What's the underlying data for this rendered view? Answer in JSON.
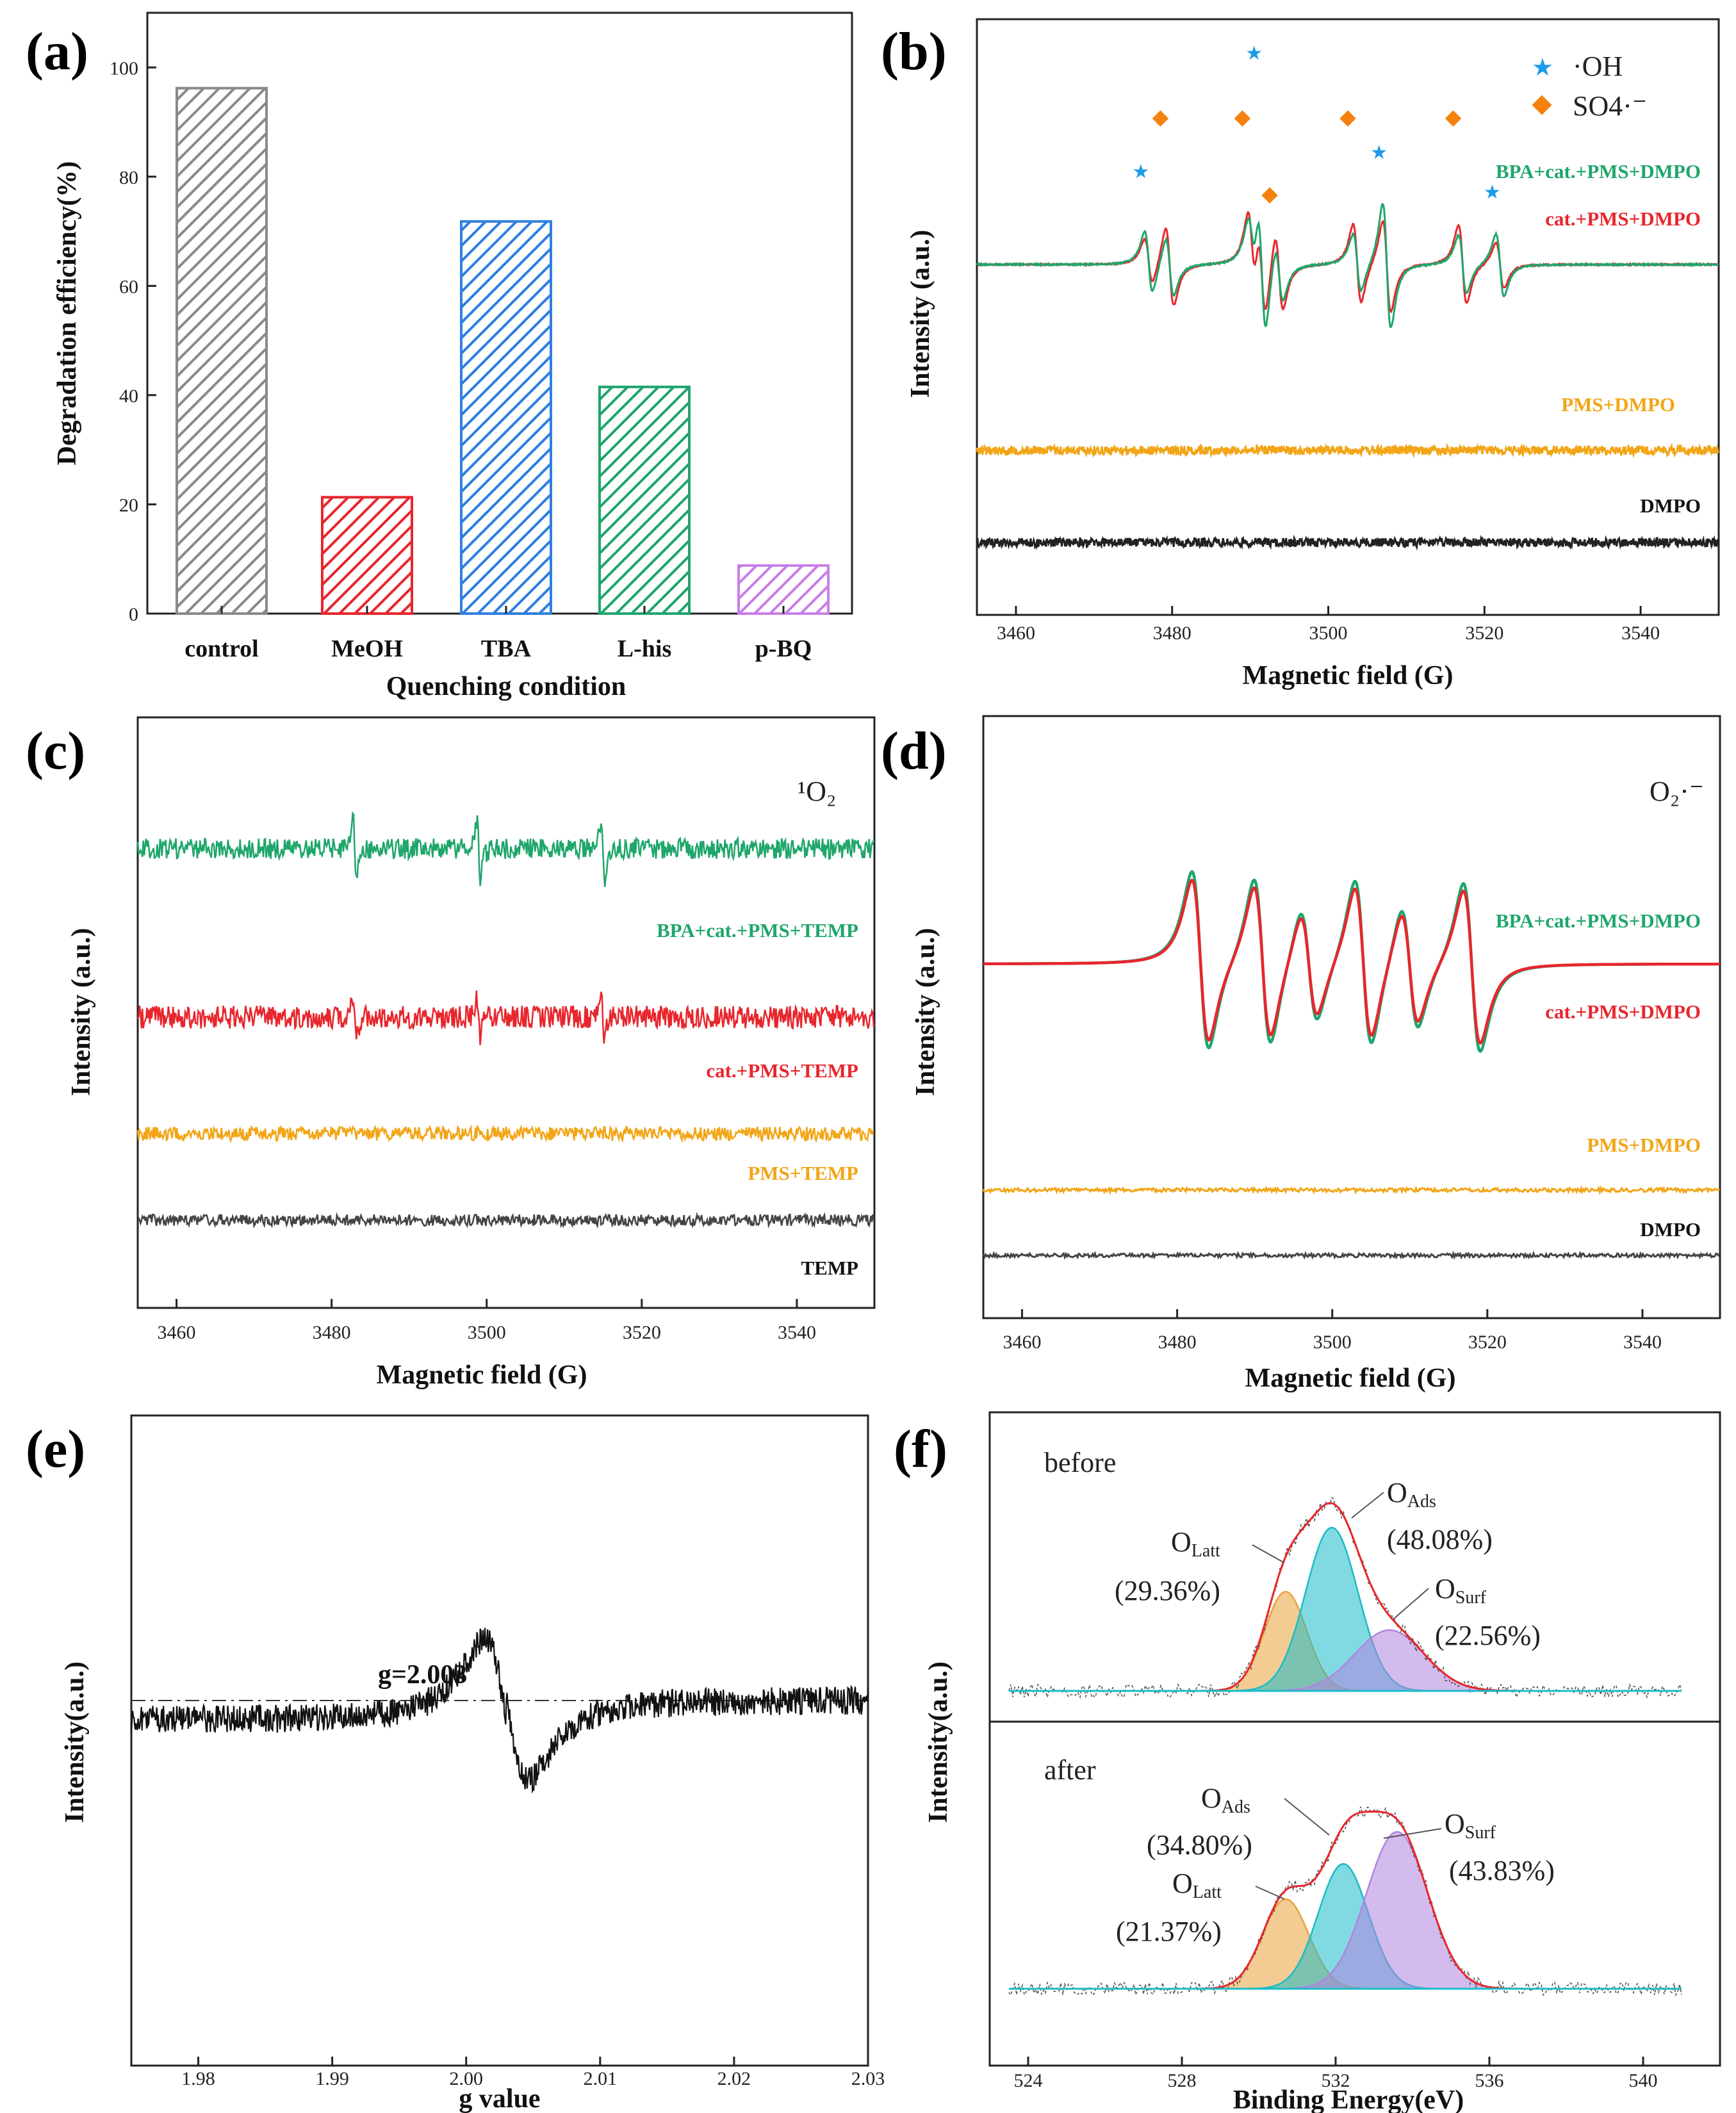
{
  "chart_data": [
    {
      "panel": "(a)",
      "type": "bar",
      "categories": [
        "control",
        "MeOH",
        "TBA",
        "L-his",
        "p-BQ"
      ],
      "values": [
        96.2,
        21.3,
        71.8,
        41.5,
        8.8
      ],
      "colors": [
        "#8a8a8a",
        "#e8262d",
        "#2f7fe0",
        "#1fa66b",
        "#c97ee8"
      ],
      "ylabel": "Degradation efficiency(%)",
      "xlabel": "Quenching condition",
      "ylim": [
        0,
        110
      ],
      "yticks": [
        0,
        20,
        40,
        60,
        80,
        100
      ]
    },
    {
      "panel": "(b)",
      "type": "line",
      "xlabel": "Magnetic field (G)",
      "ylabel": "Intensity (a.u.)",
      "xlim": [
        3455,
        3550
      ],
      "xticks": [
        3460,
        3480,
        3500,
        3520,
        3540
      ],
      "series": [
        {
          "name": "BPA+cat.+PMS+DMPO",
          "color": "#1fa66b"
        },
        {
          "name": "cat.+PMS+DMPO",
          "color": "#e8262d"
        },
        {
          "name": "PMS+DMPO",
          "color": "#f2a516"
        },
        {
          "name": "DMPO",
          "color": "#222222"
        }
      ],
      "oh_peaks_G": [
        3476,
        3490.5,
        3506.5,
        3521
      ],
      "so4_peaks_G": [
        3478.5,
        3489,
        3492.5,
        3502.5,
        3516
      ],
      "legend": [
        "·OH",
        "SO4·⁻"
      ]
    },
    {
      "panel": "(c)",
      "type": "line",
      "xlabel": "Magnetic field (G)",
      "ylabel": "Intensity (a.u.)",
      "xlim": [
        3455,
        3550
      ],
      "xticks": [
        3460,
        3480,
        3500,
        3520,
        3540
      ],
      "annotation": "¹O₂",
      "peaks_G": [
        3483,
        3499,
        3515
      ],
      "series": [
        {
          "name": "BPA+cat.+PMS+TEMP",
          "color": "#1fa66b"
        },
        {
          "name": "cat.+PMS+TEMP",
          "color": "#e8262d"
        },
        {
          "name": "PMS+TEMP",
          "color": "#f2a516"
        },
        {
          "name": "TEMP",
          "color": "#444444"
        }
      ]
    },
    {
      "panel": "(d)",
      "type": "line",
      "xlabel": "Magnetic field (G)",
      "ylabel": "Intensity (a.u.)",
      "xlim": [
        3455,
        3550
      ],
      "xticks": [
        3460,
        3480,
        3500,
        3520,
        3540
      ],
      "annotation": "O₂·⁻",
      "series": [
        {
          "name": "BPA+cat.+PMS+DMPO",
          "color": "#1fa66b"
        },
        {
          "name": "cat.+PMS+DMPO",
          "color": "#e8262d"
        },
        {
          "name": "PMS+DMPO",
          "color": "#f2a516"
        },
        {
          "name": "DMPO",
          "color": "#444444"
        }
      ]
    },
    {
      "panel": "(e)",
      "type": "line",
      "xlabel": "g value",
      "ylabel": "Intensity(a.u.)",
      "xlim": [
        1.975,
        2.03
      ],
      "xticks": [
        "1.98",
        "1.99",
        "2.00",
        "2.01",
        "2.02",
        "2.03"
      ],
      "annotation": "g=2.003",
      "g_center": 2.003
    },
    {
      "panel": "(f)",
      "type": "area",
      "xlabel": "Binding Energy(eV)",
      "ylabel": "Intensity(a.u.)",
      "xlim": [
        523,
        542
      ],
      "xticks": [
        524,
        528,
        532,
        536,
        540
      ],
      "before": {
        "label": "before",
        "components": [
          {
            "name": "O",
            "sub": "Latt",
            "percent": "(29.36%)",
            "center": 530.7,
            "color": "#e8a33a"
          },
          {
            "name": "O",
            "sub": "Ads",
            "percent": "(48.08%)",
            "center": 531.9,
            "color": "#19bcc8"
          },
          {
            "name": "O",
            "sub": "Surf",
            "percent": "(22.56%)",
            "center": 533.4,
            "color": "#b184e0"
          }
        ]
      },
      "after": {
        "label": "after",
        "components": [
          {
            "name": "O",
            "sub": "Latt",
            "percent": "(21.37%)",
            "center": 530.7,
            "color": "#e8a33a"
          },
          {
            "name": "O",
            "sub": "Ads",
            "percent": "(34.80%)",
            "center": 532.2,
            "color": "#19bcc8"
          },
          {
            "name": "O",
            "sub": "Surf",
            "percent": "(43.83%)",
            "center": 533.6,
            "color": "#b184e0"
          }
        ]
      }
    }
  ],
  "panel_labels": [
    "(a)",
    "(b)",
    "(c)",
    "(d)",
    "(e)",
    "(f)"
  ]
}
